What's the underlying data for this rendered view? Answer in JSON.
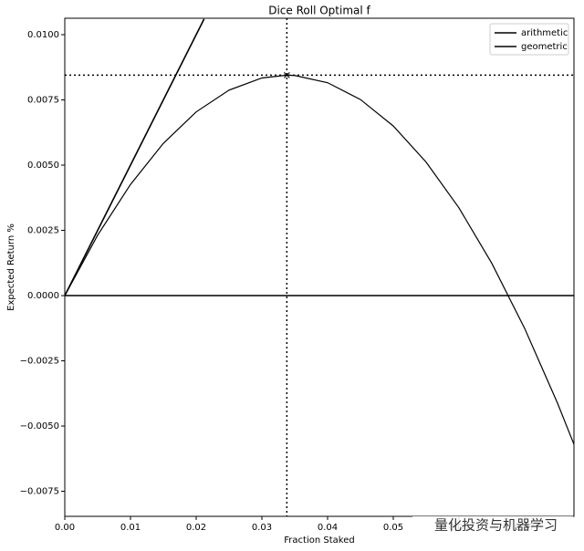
{
  "chart_data": {
    "type": "line",
    "title": "Dice Roll Optimal f",
    "xlabel": "Fraction Staked",
    "ylabel": "Expected Return %",
    "xlim": [
      0,
      0.0775
    ],
    "ylim": [
      -0.00846,
      0.01063
    ],
    "xticks": [
      {
        "value": 0,
        "label": "0.00"
      },
      {
        "value": 0.01,
        "label": "0.01"
      },
      {
        "value": 0.02,
        "label": "0.02"
      },
      {
        "value": 0.03,
        "label": "0.03"
      },
      {
        "value": 0.04,
        "label": "0.04"
      },
      {
        "value": 0.05,
        "label": "0.05"
      },
      {
        "value": 0.06,
        "label": "0.06"
      },
      {
        "value": 0.07,
        "label": "0.07"
      }
    ],
    "yticks": [
      {
        "value": -0.0075,
        "label": "−0.0075"
      },
      {
        "value": -0.005,
        "label": "−0.0050"
      },
      {
        "value": -0.0025,
        "label": "−0.0025"
      },
      {
        "value": 0,
        "label": "0.0000"
      },
      {
        "value": 0.0025,
        "label": "0.0025"
      },
      {
        "value": 0.005,
        "label": "0.0050"
      },
      {
        "value": 0.0075,
        "label": "0.0075"
      },
      {
        "value": 0.01,
        "label": "0.0100"
      }
    ],
    "series": [
      {
        "name": "arithmetic",
        "color": "#000000",
        "x": [
          0,
          0.0212
        ],
        "values": [
          0,
          0.0106
        ]
      },
      {
        "name": "geometric",
        "color": "#000000",
        "x": [
          0,
          0.005,
          0.01,
          0.015,
          0.02,
          0.025,
          0.03,
          0.0338,
          0.035,
          0.04,
          0.045,
          0.05,
          0.055,
          0.06,
          0.065,
          0.07,
          0.075,
          0.0775
        ],
        "values": [
          0,
          0.002315,
          0.00426,
          0.005835,
          0.00704,
          0.007875,
          0.00834,
          0.00845,
          0.008435,
          0.00816,
          0.007515,
          0.0065,
          0.005115,
          0.00336,
          0.001235,
          -0.00126,
          -0.004125,
          -0.0057
        ]
      }
    ],
    "optimal_f": 0.0338,
    "max_growth": 0.00845,
    "legend": "upper right",
    "watermark": "量化投资与机器学习"
  }
}
